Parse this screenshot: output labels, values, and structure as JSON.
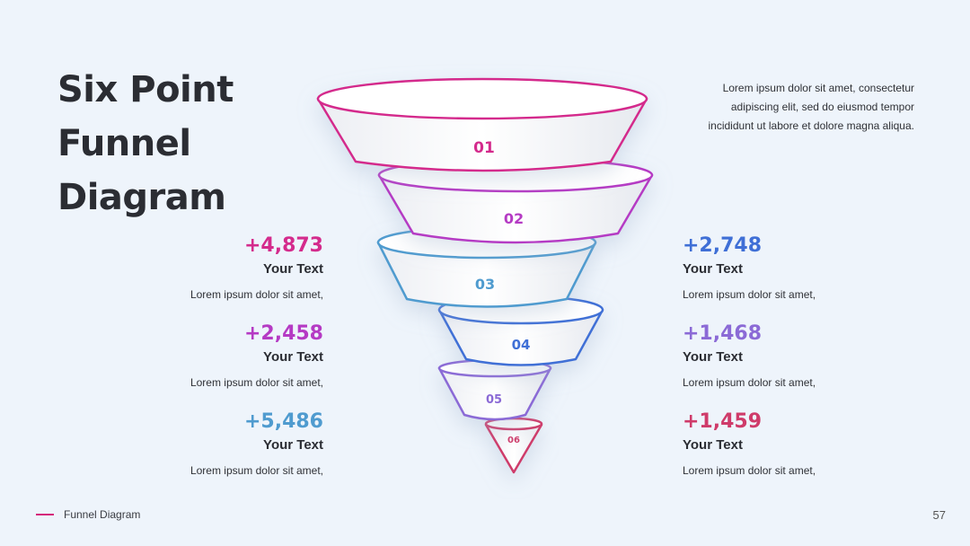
{
  "slide": {
    "title_lines": [
      "Six Point",
      "Funnel",
      "Diagram"
    ],
    "description": "Lorem ipsum dolor sit amet, consectetur adipiscing elit, sed do eiusmod tempor incididunt ut labore et dolore magna aliqua.",
    "footer_label": "Funnel Diagram",
    "page_number": "57"
  },
  "funnel": {
    "segments": [
      {
        "label": "01",
        "color": "#d42b8c"
      },
      {
        "label": "02",
        "color": "#b53ac4"
      },
      {
        "label": "03",
        "color": "#4f9bcf"
      },
      {
        "label": "04",
        "color": "#3f6fd6"
      },
      {
        "label": "05",
        "color": "#8b6ad6"
      },
      {
        "label": "06",
        "color": "#cf3b6a"
      }
    ]
  },
  "stats_left": [
    {
      "value": "+4,873",
      "label": "Your Text",
      "text": "Lorem ipsum dolor sit amet,",
      "color": "#d42b8c"
    },
    {
      "value": "+2,458",
      "label": "Your Text",
      "text": "Lorem ipsum dolor sit amet,",
      "color": "#b53ac4"
    },
    {
      "value": "+5,486",
      "label": "Your Text",
      "text": "Lorem ipsum dolor sit amet,",
      "color": "#4f9bcf"
    }
  ],
  "stats_right": [
    {
      "value": "+2,748",
      "label": "Your Text",
      "text": "Lorem ipsum dolor sit amet,",
      "color": "#3f6fd6"
    },
    {
      "value": "+1,468",
      "label": "Your Text",
      "text": "Lorem ipsum dolor sit amet,",
      "color": "#8b6ad6"
    },
    {
      "value": "+1,459",
      "label": "Your Text",
      "text": "Lorem ipsum dolor sit amet,",
      "color": "#cf3b6a"
    }
  ]
}
